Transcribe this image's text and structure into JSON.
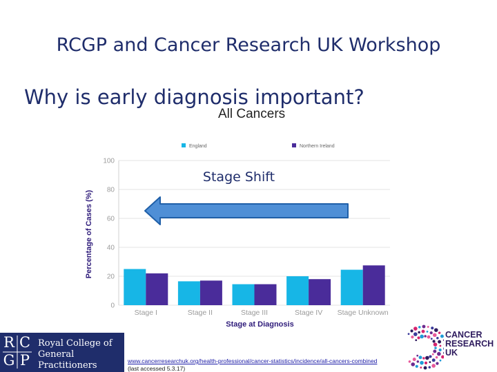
{
  "header": {
    "title": "RCGP and Cancer Research UK Workshop",
    "subtitle": "Why is early diagnosis important?"
  },
  "chart_data": {
    "type": "bar",
    "title": "All Cancers",
    "xlabel": "Stage at Diagnosis",
    "ylabel": "Percentage of Cases (%)",
    "ylim": [
      0,
      100
    ],
    "yticks": [
      0,
      20,
      40,
      60,
      80,
      100
    ],
    "categories": [
      "Stage I",
      "Stage II",
      "Stage III",
      "Stage IV",
      "Stage Unknown"
    ],
    "series": [
      {
        "name": "England",
        "color": "#17b6e6",
        "values": [
          25,
          16.5,
          14.5,
          20,
          24.5
        ]
      },
      {
        "name": "Northern Ireland",
        "color": "#4a2c9a",
        "values": [
          22,
          17,
          14.5,
          18,
          27.5
        ]
      }
    ],
    "legend": "top",
    "grid": true,
    "annotation": {
      "text": "Stage Shift",
      "arrow_direction": "left"
    },
    "colors": {
      "axis_label": "#2e1b7a",
      "tick_label": "#9a9a9a",
      "grid": "#e3e3e3",
      "arrow_fill": "#4f8fd6",
      "arrow_stroke": "#1f5fa8"
    }
  },
  "footer": {
    "rcgp_logo_letters": [
      "R",
      "C",
      "G",
      "P"
    ],
    "rcgp_name_lines": [
      "Royal College of",
      "General Practitioners"
    ],
    "source_url": "www.cancerresearchuk.org/health-professional/cancer-statistics/incidence/all-cancers-combined",
    "accessed": "(last accessed 5.3.17)",
    "cruk_lines": [
      "CANCER",
      "RESEARCH",
      "UK"
    ]
  }
}
